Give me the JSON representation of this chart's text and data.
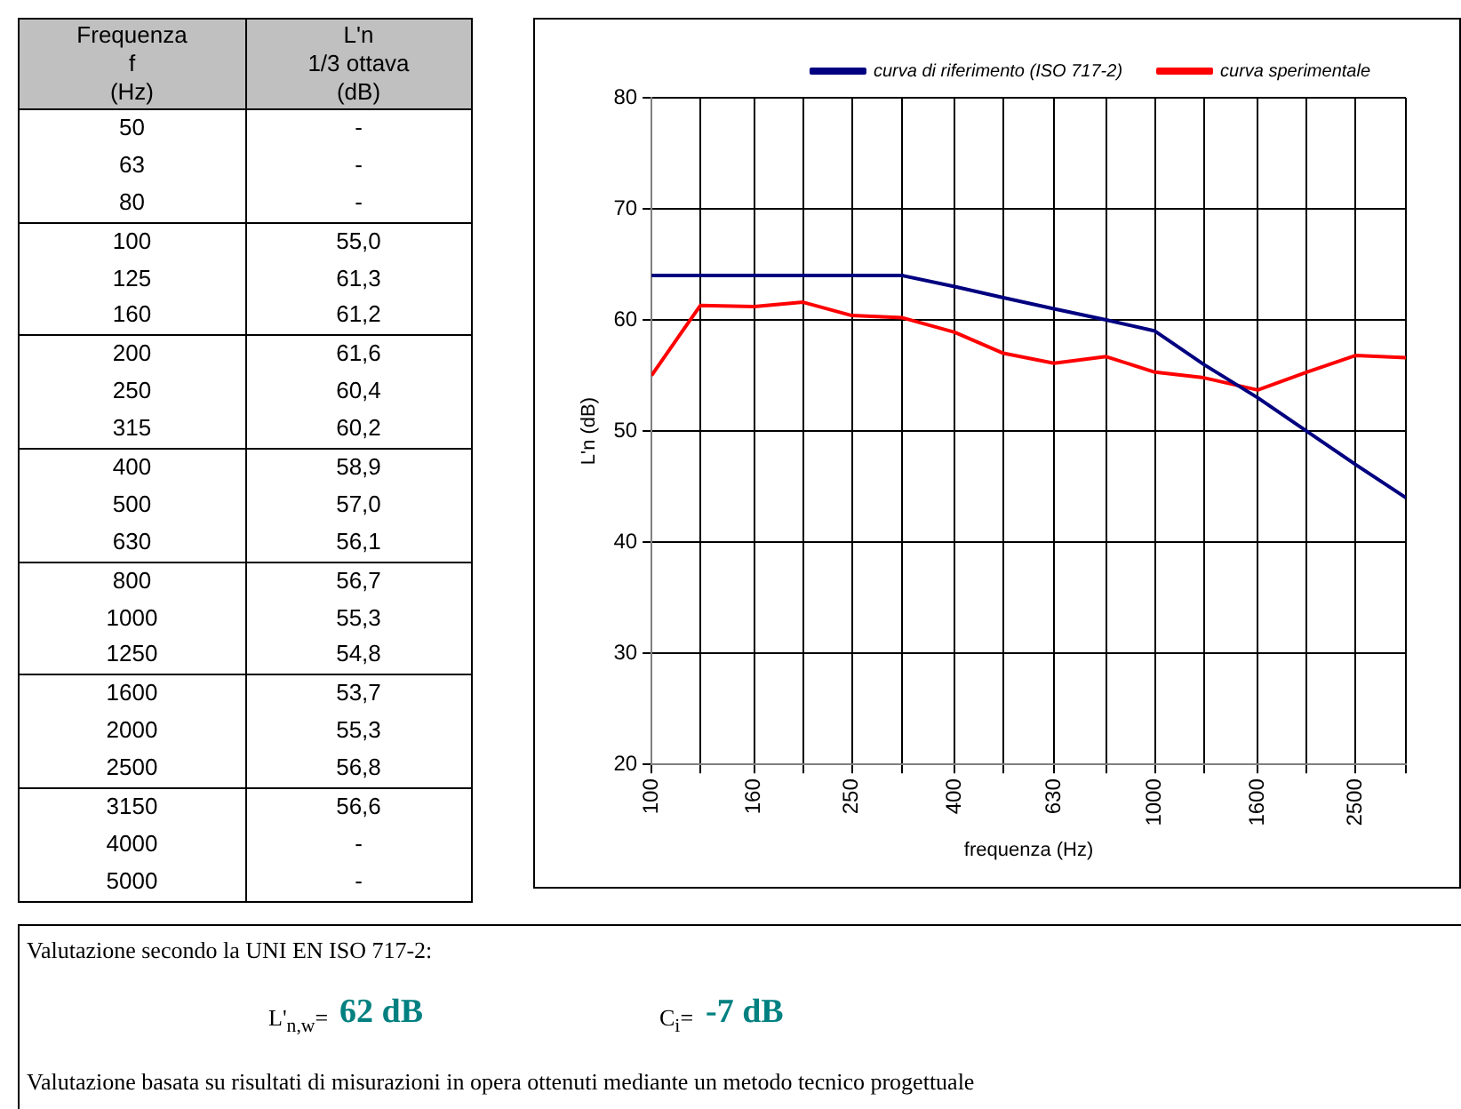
{
  "chart_data": [
    {
      "type": "other",
      "annotations": [
        "Frequenza\nf\n(Hz)",
        "L'n\n1/3  ottava\n(dB)"
      ],
      "categories": [
        "50",
        "63",
        "80",
        "100",
        "125",
        "160",
        "200",
        "250",
        "315",
        "400",
        "500",
        "630",
        "800",
        "1000",
        "1250",
        "1600",
        "2000",
        "2500",
        "3150",
        "4000",
        "5000"
      ],
      "value_labels": [
        "-",
        "-",
        "-",
        "55,0",
        "61,3",
        "61,2",
        "61,6",
        "60,4",
        "60,2",
        "58,9",
        "57,0",
        "56,1",
        "56,7",
        "55,3",
        "54,8",
        "53,7",
        "55,3",
        "56,8",
        "56,6",
        "-",
        "-"
      ]
    },
    {
      "type": "line",
      "xlabel": "frequenza (Hz)",
      "ylabel": "L'n (dB)",
      "log": "x",
      "x": [
        100,
        125,
        160,
        200,
        250,
        315,
        400,
        500,
        630,
        800,
        1000,
        1250,
        1600,
        2000,
        2500,
        3150
      ],
      "series": [
        {
          "name": "curva di riferimento (ISO 717-2)",
          "color": "#000080",
          "values": [
            64,
            64,
            64,
            64,
            64,
            64,
            63,
            62,
            61,
            60,
            59,
            56,
            53,
            50,
            47,
            44
          ]
        },
        {
          "name": "curva sperimentale",
          "color": "#ff0000",
          "values": [
            55.0,
            61.3,
            61.2,
            61.6,
            60.4,
            60.2,
            58.9,
            57.0,
            56.1,
            56.7,
            55.3,
            54.8,
            53.7,
            55.3,
            56.8,
            56.6
          ]
        }
      ],
      "xlim": [
        100,
        3150
      ],
      "xticks": [
        100,
        {
          "value": 125,
          "label": null
        },
        160,
        {
          "value": 200,
          "label": null
        },
        250,
        {
          "value": 315,
          "label": null
        },
        400,
        {
          "value": 500,
          "label": null
        },
        630,
        {
          "value": 800,
          "label": null
        },
        1000,
        {
          "value": 1250,
          "label": null
        },
        1600,
        {
          "value": 2000,
          "label": null
        },
        2500,
        {
          "value": 3150,
          "label": null
        }
      ],
      "ylim": [
        20,
        80
      ],
      "yticks": [
        20,
        30,
        40,
        50,
        60,
        70,
        80
      ],
      "grid": true,
      "legend": "top",
      "marker": "none",
      "line_style": "solid"
    },
    {
      "type": "other",
      "annotations": [
        "Valutazione secondo la UNI EN ISO 717-2:",
        "L'$_{n,w}$=",
        "62 dB",
        "C$_{i}$=",
        "-7 dB",
        "Valutazione basata su risultati di misurazioni in opera ottenuti mediante un metodo tecnico progettuale"
      ]
    }
  ]
}
